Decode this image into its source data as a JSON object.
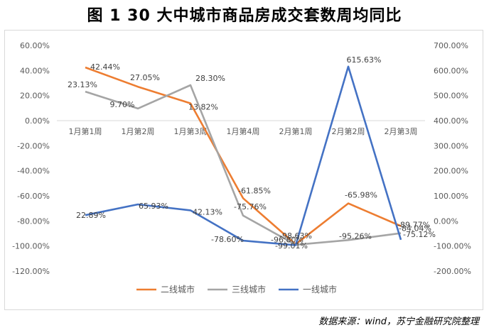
{
  "title": "图 1  30 大中城市商品房成交套数周均同比",
  "source": "数据来源：wind，苏宁金融研究院整理",
  "chart_data": {
    "type": "line",
    "categories": [
      "1月第1周",
      "1月第2周",
      "1月第3周",
      "1月第4周",
      "2月第1周",
      "2月第2周",
      "2月第3周"
    ],
    "left_axis": {
      "min": -120,
      "max": 60,
      "step": 20,
      "tick_labels": [
        "60.00%",
        "40.00%",
        "20.00%",
        "0.00%",
        "-20.00%",
        "-40.00%",
        "-60.00%",
        "-80.00%",
        "-100.00%",
        "-120.00%"
      ]
    },
    "right_axis": {
      "min": -200,
      "max": 700,
      "step": 100,
      "tick_labels": [
        "700.00%",
        "600.00%",
        "500.00%",
        "400.00%",
        "300.00%",
        "200.00%",
        "100.00%",
        "0.00%",
        "-100.00%",
        "-200.00%"
      ]
    },
    "grid": false,
    "legend_position": "bottom",
    "series": [
      {
        "name": "二线城市",
        "color": "#ED7D31",
        "axis": "left",
        "values": [
          42.44,
          27.05,
          13.82,
          -61.85,
          -98.63,
          -65.98,
          -84.04
        ],
        "labels": [
          "42.44%",
          "27.05%",
          "13.82%",
          "-61.85%",
          "-98.63%",
          "-65.98%",
          "-84.04%"
        ]
      },
      {
        "name": "三线城市",
        "color": "#A5A5A5",
        "axis": "left",
        "values": [
          23.13,
          9.7,
          28.3,
          -75.76,
          -99.01,
          -95.26,
          -89.77
        ],
        "labels": [
          "23.13%",
          "9.70%",
          "28.30%",
          "-75.76%",
          "-99.01%",
          "-95.26%",
          "-89.77%"
        ]
      },
      {
        "name": "一线城市",
        "color": "#4472C4",
        "axis": "right",
        "values": [
          22.89,
          65.93,
          42.13,
          -78.6,
          -96.8,
          615.63,
          -75.12
        ],
        "labels": [
          "22.89%",
          "65.93%",
          "42.13%",
          "-78.60%",
          "-96.80%",
          "615.63%",
          "-75.12%"
        ]
      }
    ]
  }
}
